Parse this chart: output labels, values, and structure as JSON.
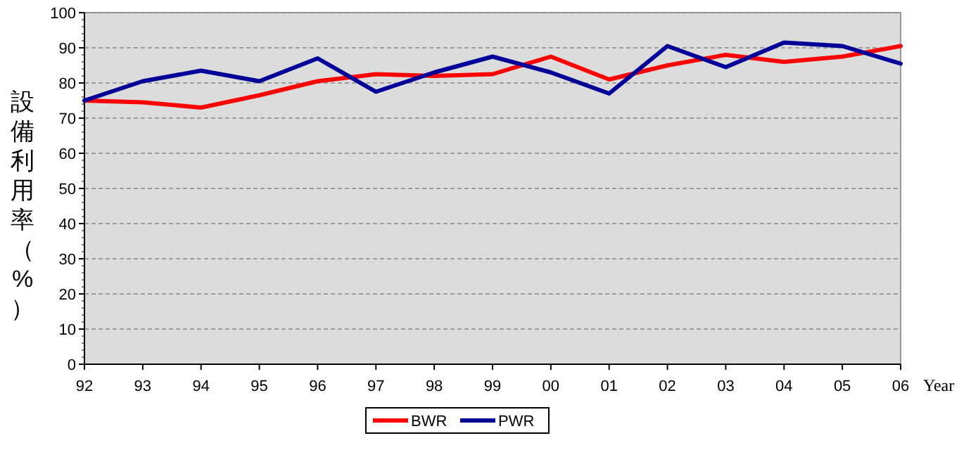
{
  "chart_data": {
    "type": "line",
    "ylabel": "設備利用率（%）",
    "xlabel": "Year",
    "categories": [
      "92",
      "93",
      "94",
      "95",
      "96",
      "97",
      "98",
      "99",
      "00",
      "01",
      "02",
      "03",
      "04",
      "05",
      "06"
    ],
    "series": [
      {
        "name": "BWR",
        "color": "#ff0000",
        "values": [
          75,
          74.5,
          73,
          76.5,
          80.5,
          82.5,
          82,
          82.5,
          87.5,
          81,
          85,
          88,
          86,
          87.5,
          90.5
        ]
      },
      {
        "name": "PWR",
        "color": "#000099",
        "values": [
          75,
          80.5,
          83.5,
          80.5,
          87,
          77.5,
          83,
          87.5,
          83,
          77,
          90.5,
          84.5,
          91.5,
          90.5,
          85.5
        ]
      }
    ],
    "ylim": [
      0,
      100
    ],
    "yticks": [
      0,
      10,
      20,
      30,
      40,
      50,
      60,
      70,
      80,
      90,
      100
    ],
    "grid": "y",
    "legend": "bottom"
  }
}
